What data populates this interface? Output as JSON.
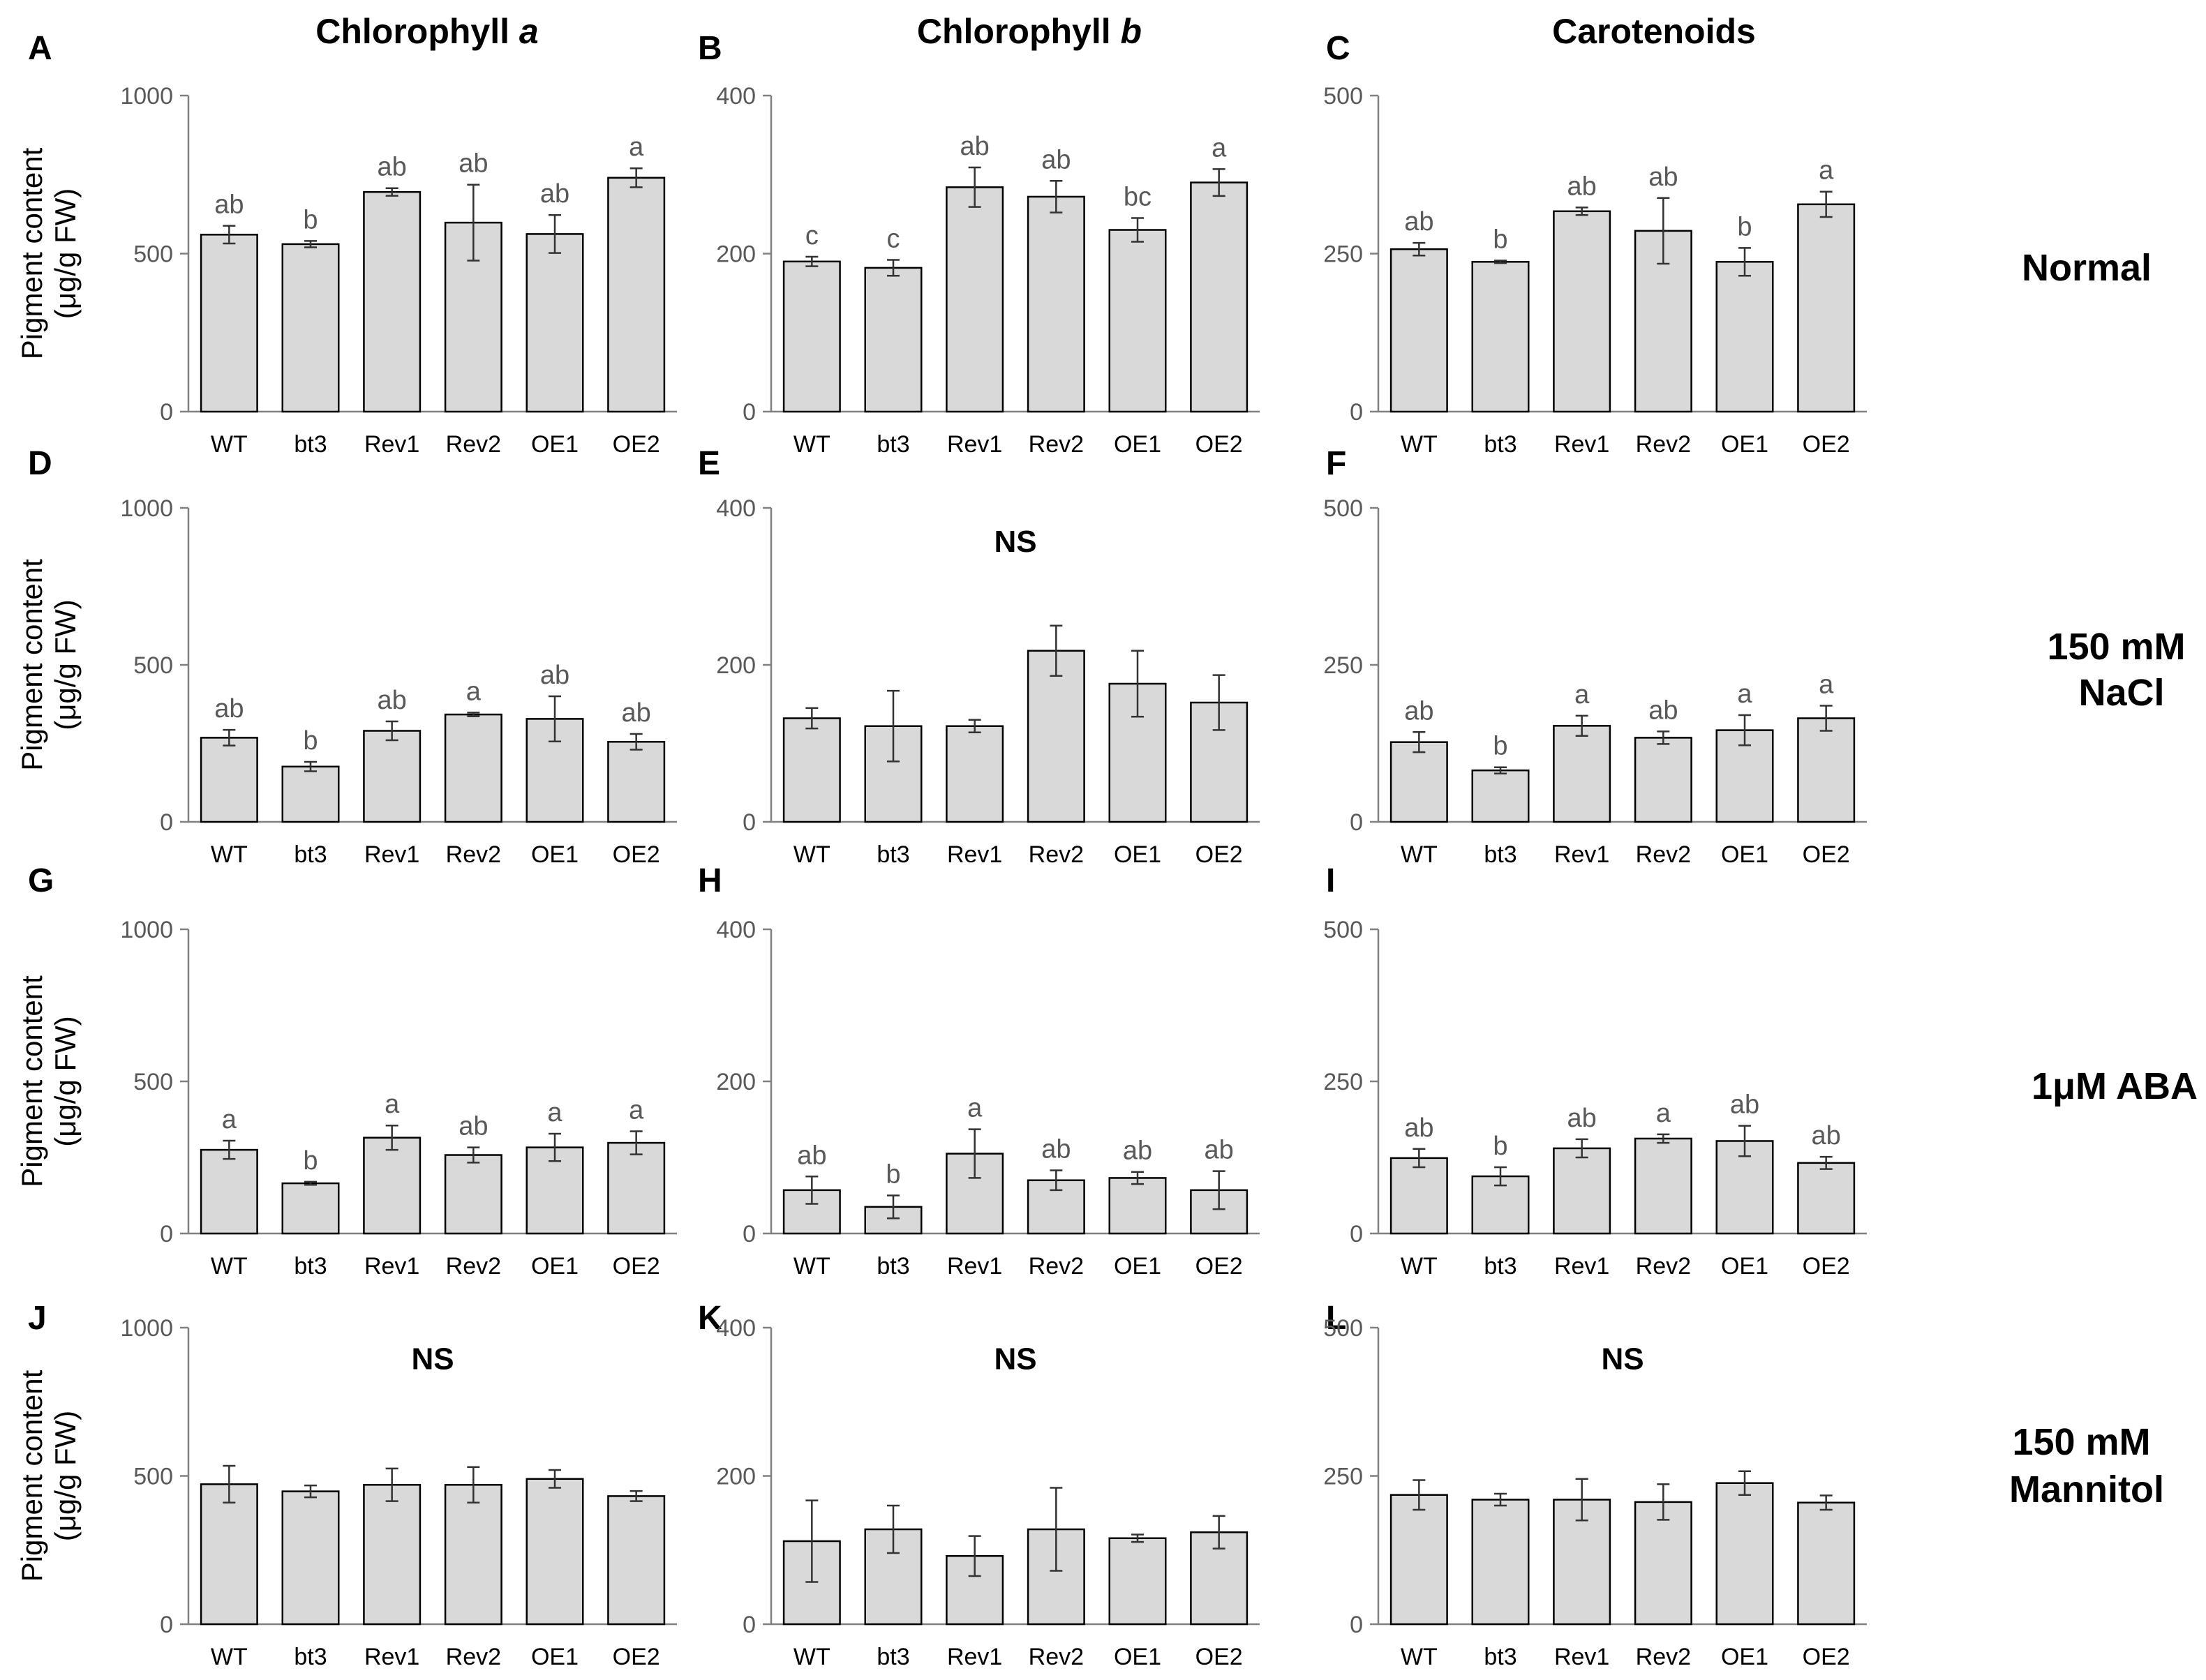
{
  "column_titles": [
    {
      "text": "Chlorophyll ",
      "italic": "a"
    },
    {
      "text": "Chlorophyll ",
      "italic": "b"
    },
    {
      "text": "Carotenoids",
      "italic": ""
    }
  ],
  "row_titles": [
    [
      "Normal"
    ],
    [
      "150 mM",
      "NaCl"
    ],
    [
      "1μM ABA"
    ],
    [
      "150 mM",
      "Mannitol"
    ]
  ],
  "ylabel_lines": [
    "Pigment content",
    "(μg/g FW)"
  ],
  "colors": {
    "bar_fill": "#d9d9d9",
    "bar_stroke": "#000000",
    "axis": "#808080"
  },
  "chart_data": [
    {
      "panel": "A",
      "type": "bar",
      "categories": [
        "WT",
        "bt3",
        "Rev1",
        "Rev2",
        "OE1",
        "OE2"
      ],
      "ylim": [
        0,
        1000
      ],
      "yticks": [
        0,
        500,
        1000
      ],
      "values": [
        560,
        530,
        695,
        598,
        562,
        740
      ],
      "errors": [
        28,
        10,
        12,
        120,
        60,
        30
      ],
      "letters": [
        "ab",
        "b",
        "ab",
        "ab",
        "ab",
        "a"
      ],
      "ns": ""
    },
    {
      "panel": "B",
      "type": "bar",
      "categories": [
        "WT",
        "bt3",
        "Rev1",
        "Rev2",
        "OE1",
        "OE2"
      ],
      "ylim": [
        0,
        400
      ],
      "yticks": [
        0,
        200,
        400
      ],
      "values": [
        190,
        182,
        284,
        272,
        230,
        290
      ],
      "errors": [
        6,
        10,
        25,
        20,
        15,
        17
      ],
      "letters": [
        "c",
        "c",
        "ab",
        "ab",
        "bc",
        "a"
      ],
      "ns": ""
    },
    {
      "panel": "C",
      "type": "bar",
      "categories": [
        "WT",
        "bt3",
        "Rev1",
        "Rev2",
        "OE1",
        "OE2"
      ],
      "ylim": [
        0,
        500
      ],
      "yticks": [
        0,
        250,
        500
      ],
      "values": [
        257,
        237,
        317,
        286,
        237,
        328
      ],
      "errors": [
        10,
        2,
        6,
        52,
        22,
        20
      ],
      "letters": [
        "ab",
        "b",
        "ab",
        "ab",
        "b",
        "a"
      ],
      "ns": ""
    },
    {
      "panel": "D",
      "type": "bar",
      "categories": [
        "WT",
        "bt3",
        "Rev1",
        "Rev2",
        "OE1",
        "OE2"
      ],
      "ylim": [
        0,
        1000
      ],
      "yticks": [
        0,
        500,
        1000
      ],
      "values": [
        268,
        176,
        290,
        342,
        328,
        255
      ],
      "errors": [
        25,
        15,
        30,
        6,
        72,
        25
      ],
      "letters": [
        "ab",
        "b",
        "ab",
        "a",
        "ab",
        "ab"
      ],
      "ns": ""
    },
    {
      "panel": "E",
      "type": "bar",
      "categories": [
        "WT",
        "bt3",
        "Rev1",
        "Rev2",
        "OE1",
        "OE2"
      ],
      "ylim": [
        0,
        400
      ],
      "yticks": [
        0,
        200,
        400
      ],
      "values": [
        132,
        122,
        122,
        218,
        176,
        152
      ],
      "errors": [
        13,
        45,
        8,
        32,
        42,
        35
      ],
      "letters": [
        "",
        "",
        "",
        "",
        "",
        ""
      ],
      "ns": "NS"
    },
    {
      "panel": "F",
      "type": "bar",
      "categories": [
        "WT",
        "bt3",
        "Rev1",
        "Rev2",
        "OE1",
        "OE2"
      ],
      "ylim": [
        0,
        500
      ],
      "yticks": [
        0,
        250,
        500
      ],
      "values": [
        127,
        82,
        153,
        134,
        146,
        165
      ],
      "errors": [
        16,
        5,
        16,
        10,
        24,
        20
      ],
      "letters": [
        "ab",
        "b",
        "a",
        "ab",
        "a",
        "a"
      ],
      "ns": ""
    },
    {
      "panel": "G",
      "type": "bar",
      "categories": [
        "WT",
        "bt3",
        "Rev1",
        "Rev2",
        "OE1",
        "OE2"
      ],
      "ylim": [
        0,
        1000
      ],
      "yticks": [
        0,
        500,
        1000
      ],
      "values": [
        275,
        165,
        315,
        258,
        283,
        298
      ],
      "errors": [
        30,
        5,
        40,
        25,
        45,
        38
      ],
      "letters": [
        "a",
        "b",
        "a",
        "ab",
        "a",
        "a"
      ],
      "ns": ""
    },
    {
      "panel": "H",
      "type": "bar",
      "categories": [
        "WT",
        "bt3",
        "Rev1",
        "Rev2",
        "OE1",
        "OE2"
      ],
      "ylim": [
        0,
        400
      ],
      "yticks": [
        0,
        200,
        400
      ],
      "values": [
        57,
        35,
        105,
        70,
        73,
        57
      ],
      "errors": [
        18,
        15,
        32,
        13,
        8,
        25
      ],
      "letters": [
        "ab",
        "b",
        "a",
        "ab",
        "ab",
        "ab"
      ],
      "ns": ""
    },
    {
      "panel": "I",
      "type": "bar",
      "categories": [
        "WT",
        "bt3",
        "Rev1",
        "Rev2",
        "OE1",
        "OE2"
      ],
      "ylim": [
        0,
        500
      ],
      "yticks": [
        0,
        250,
        500
      ],
      "values": [
        124,
        94,
        140,
        156,
        152,
        116
      ],
      "errors": [
        15,
        15,
        15,
        7,
        25,
        10
      ],
      "letters": [
        "ab",
        "b",
        "ab",
        "a",
        "ab",
        "ab"
      ],
      "ns": ""
    },
    {
      "panel": "J",
      "type": "bar",
      "categories": [
        "WT",
        "bt3",
        "Rev1",
        "Rev2",
        "OE1",
        "OE2"
      ],
      "ylim": [
        0,
        1000
      ],
      "yticks": [
        0,
        500,
        1000
      ],
      "values": [
        472,
        448,
        470,
        470,
        490,
        432
      ],
      "errors": [
        62,
        20,
        55,
        60,
        30,
        17
      ],
      "letters": [
        "",
        "",
        "",
        "",
        "",
        ""
      ],
      "ns": "NS"
    },
    {
      "panel": "K",
      "type": "bar",
      "categories": [
        "WT",
        "bt3",
        "Rev1",
        "Rev2",
        "OE1",
        "OE2"
      ],
      "ylim": [
        0,
        400
      ],
      "yticks": [
        0,
        200,
        400
      ],
      "values": [
        112,
        128,
        92,
        128,
        116,
        124
      ],
      "errors": [
        55,
        32,
        27,
        56,
        5,
        22
      ],
      "letters": [
        "",
        "",
        "",
        "",
        "",
        ""
      ],
      "ns": "NS"
    },
    {
      "panel": "L",
      "type": "bar",
      "categories": [
        "WT",
        "bt3",
        "Rev1",
        "Rev2",
        "OE1",
        "OE2"
      ],
      "ylim": [
        0,
        500
      ],
      "yticks": [
        0,
        250,
        500
      ],
      "values": [
        218,
        210,
        210,
        206,
        238,
        205
      ],
      "errors": [
        25,
        10,
        35,
        30,
        20,
        12
      ],
      "letters": [
        "",
        "",
        "",
        "",
        "",
        ""
      ],
      "ns": "NS"
    }
  ]
}
